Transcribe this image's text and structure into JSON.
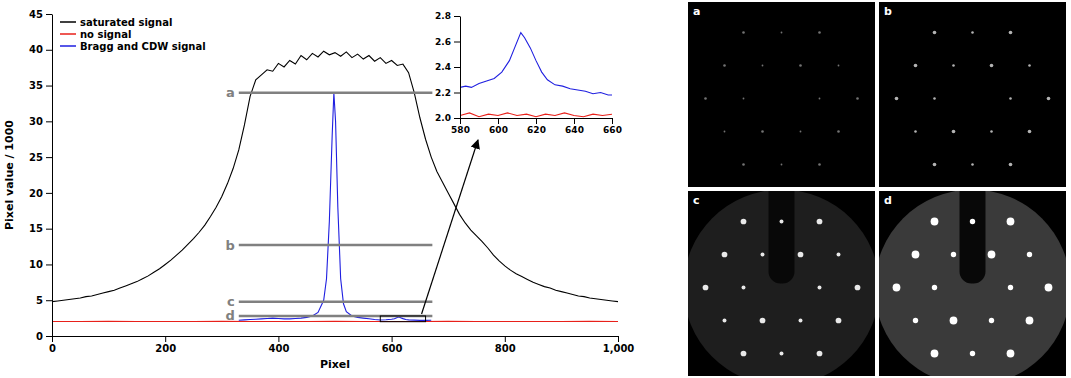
{
  "chart_data": [
    {
      "type": "line",
      "x_label": "Pixel",
      "y_label": "Pixel value / 1000",
      "xlim": [
        0,
        1000
      ],
      "ylim": [
        0,
        45
      ],
      "xticks": [
        0,
        200,
        400,
        600,
        800,
        {
          "value": 1000,
          "label": "1,000"
        }
      ],
      "yticks": [
        0,
        5,
        10,
        15,
        20,
        25,
        30,
        35,
        40,
        45
      ],
      "legend": "upper left",
      "series": [
        {
          "name": "saturated signal",
          "color": "#000000",
          "x": [
            0,
            10,
            20,
            30,
            40,
            50,
            60,
            70,
            80,
            90,
            100,
            110,
            120,
            130,
            140,
            150,
            160,
            170,
            180,
            190,
            200,
            210,
            220,
            230,
            240,
            250,
            260,
            270,
            280,
            290,
            300,
            310,
            320,
            330,
            340,
            350,
            360,
            370,
            380,
            390,
            400,
            410,
            420,
            430,
            440,
            450,
            460,
            470,
            480,
            490,
            500,
            510,
            520,
            530,
            540,
            550,
            560,
            570,
            580,
            590,
            600,
            610,
            620,
            630,
            640,
            650,
            660,
            670,
            680,
            690,
            700,
            710,
            720,
            730,
            740,
            750,
            760,
            770,
            780,
            790,
            800,
            810,
            820,
            830,
            840,
            850,
            860,
            870,
            880,
            890,
            900,
            910,
            920,
            930,
            940,
            950,
            960,
            970,
            980,
            990,
            1000
          ],
          "values": [
            4.8,
            4.9,
            5.0,
            5.1,
            5.2,
            5.3,
            5.5,
            5.6,
            5.8,
            6.0,
            6.2,
            6.4,
            6.7,
            7.0,
            7.3,
            7.6,
            8.0,
            8.4,
            8.9,
            9.4,
            10.0,
            10.6,
            11.3,
            12.0,
            12.8,
            13.6,
            14.5,
            15.5,
            16.7,
            18.0,
            19.5,
            21.3,
            23.4,
            26.0,
            29.5,
            33.5,
            35.8,
            36.5,
            37.2,
            37.0,
            38.1,
            37.6,
            38.5,
            38.0,
            39.2,
            38.6,
            39.5,
            39.0,
            39.8,
            39.3,
            39.6,
            39.1,
            39.7,
            38.9,
            39.4,
            38.7,
            39.2,
            38.4,
            38.9,
            38.1,
            38.5,
            37.8,
            38.0,
            36.8,
            34.0,
            30.5,
            27.5,
            25.0,
            23.0,
            21.5,
            20.0,
            18.5,
            17.0,
            15.8,
            14.8,
            14.0,
            13.2,
            12.3,
            11.3,
            10.5,
            9.8,
            9.2,
            8.7,
            8.3,
            7.9,
            7.5,
            7.2,
            6.9,
            6.7,
            6.4,
            6.2,
            6.0,
            5.8,
            5.6,
            5.5,
            5.3,
            5.2,
            5.1,
            5.0,
            4.9,
            4.8
          ]
        },
        {
          "name": "no signal",
          "color": "#e8201a",
          "x": [
            0,
            50,
            100,
            150,
            200,
            250,
            300,
            350,
            400,
            450,
            500,
            550,
            600,
            650,
            700,
            750,
            800,
            850,
            900,
            950,
            1000
          ],
          "values": [
            2.03,
            2.02,
            2.04,
            2.03,
            2.02,
            2.03,
            2.04,
            2.02,
            2.03,
            2.02,
            2.04,
            2.03,
            2.02,
            2.03,
            2.04,
            2.02,
            2.03,
            2.02,
            2.03,
            2.04,
            2.03
          ]
        },
        {
          "name": "Bragg and CDW signal",
          "color": "#1f1fe0",
          "x": [
            330,
            340,
            350,
            360,
            370,
            380,
            390,
            400,
            410,
            420,
            430,
            440,
            450,
            460,
            470,
            480,
            485,
            490,
            495,
            498,
            501,
            505,
            510,
            515,
            520,
            530,
            540,
            550,
            560,
            570,
            580,
            590,
            600,
            605,
            610,
            612,
            615,
            620,
            625,
            630,
            640,
            650,
            660,
            670
          ],
          "values": [
            2.2,
            2.25,
            2.3,
            2.35,
            2.4,
            2.45,
            2.5,
            2.45,
            2.4,
            2.4,
            2.45,
            2.5,
            2.6,
            2.8,
            3.3,
            5.0,
            8.0,
            16.0,
            28.0,
            34.0,
            30.0,
            18.0,
            8.0,
            4.5,
            3.4,
            2.8,
            2.6,
            2.5,
            2.4,
            2.3,
            2.24,
            2.27,
            2.33,
            2.42,
            2.6,
            2.67,
            2.6,
            2.43,
            2.3,
            2.25,
            2.22,
            2.19,
            2.18,
            2.2
          ]
        }
      ],
      "levels": [
        {
          "label": "a",
          "value": 34,
          "x": [
            330,
            672
          ]
        },
        {
          "label": "b",
          "value": 12.7,
          "x": [
            330,
            672
          ]
        },
        {
          "label": "c",
          "value": 4.8,
          "x": [
            330,
            672
          ]
        },
        {
          "label": "d",
          "value": 2.8,
          "x": [
            330,
            672
          ]
        }
      ]
    },
    {
      "type": "line",
      "xlim": [
        580,
        660
      ],
      "ylim": [
        2.0,
        2.8
      ],
      "xticks": [
        580,
        600,
        620,
        640,
        660
      ],
      "yticks": [
        {
          "value": 2.0,
          "label": "2.0"
        },
        2.2,
        2.4,
        2.6,
        2.8
      ],
      "series": [
        {
          "color": "#1f1fe0",
          "x": [
            580,
            583,
            586,
            590,
            594,
            598,
            602,
            606,
            609,
            612,
            614,
            617,
            620,
            623,
            626,
            630,
            634,
            638,
            642,
            646,
            650,
            654,
            658,
            660
          ],
          "values": [
            2.24,
            2.25,
            2.24,
            2.27,
            2.29,
            2.31,
            2.36,
            2.45,
            2.56,
            2.67,
            2.63,
            2.55,
            2.45,
            2.36,
            2.3,
            2.26,
            2.25,
            2.23,
            2.22,
            2.21,
            2.19,
            2.2,
            2.18,
            2.18
          ]
        },
        {
          "color": "#e8201a",
          "x": [
            580,
            585,
            590,
            595,
            600,
            605,
            610,
            615,
            620,
            625,
            630,
            635,
            640,
            645,
            650,
            655,
            660
          ],
          "values": [
            2.02,
            2.04,
            2.01,
            2.03,
            2.02,
            2.04,
            2.02,
            2.03,
            2.01,
            2.03,
            2.02,
            2.04,
            2.02,
            2.01,
            2.03,
            2.02,
            2.03
          ]
        }
      ]
    }
  ],
  "image_panels": [
    {
      "label": "a"
    },
    {
      "label": "b"
    },
    {
      "label": "c"
    },
    {
      "label": "d"
    }
  ]
}
